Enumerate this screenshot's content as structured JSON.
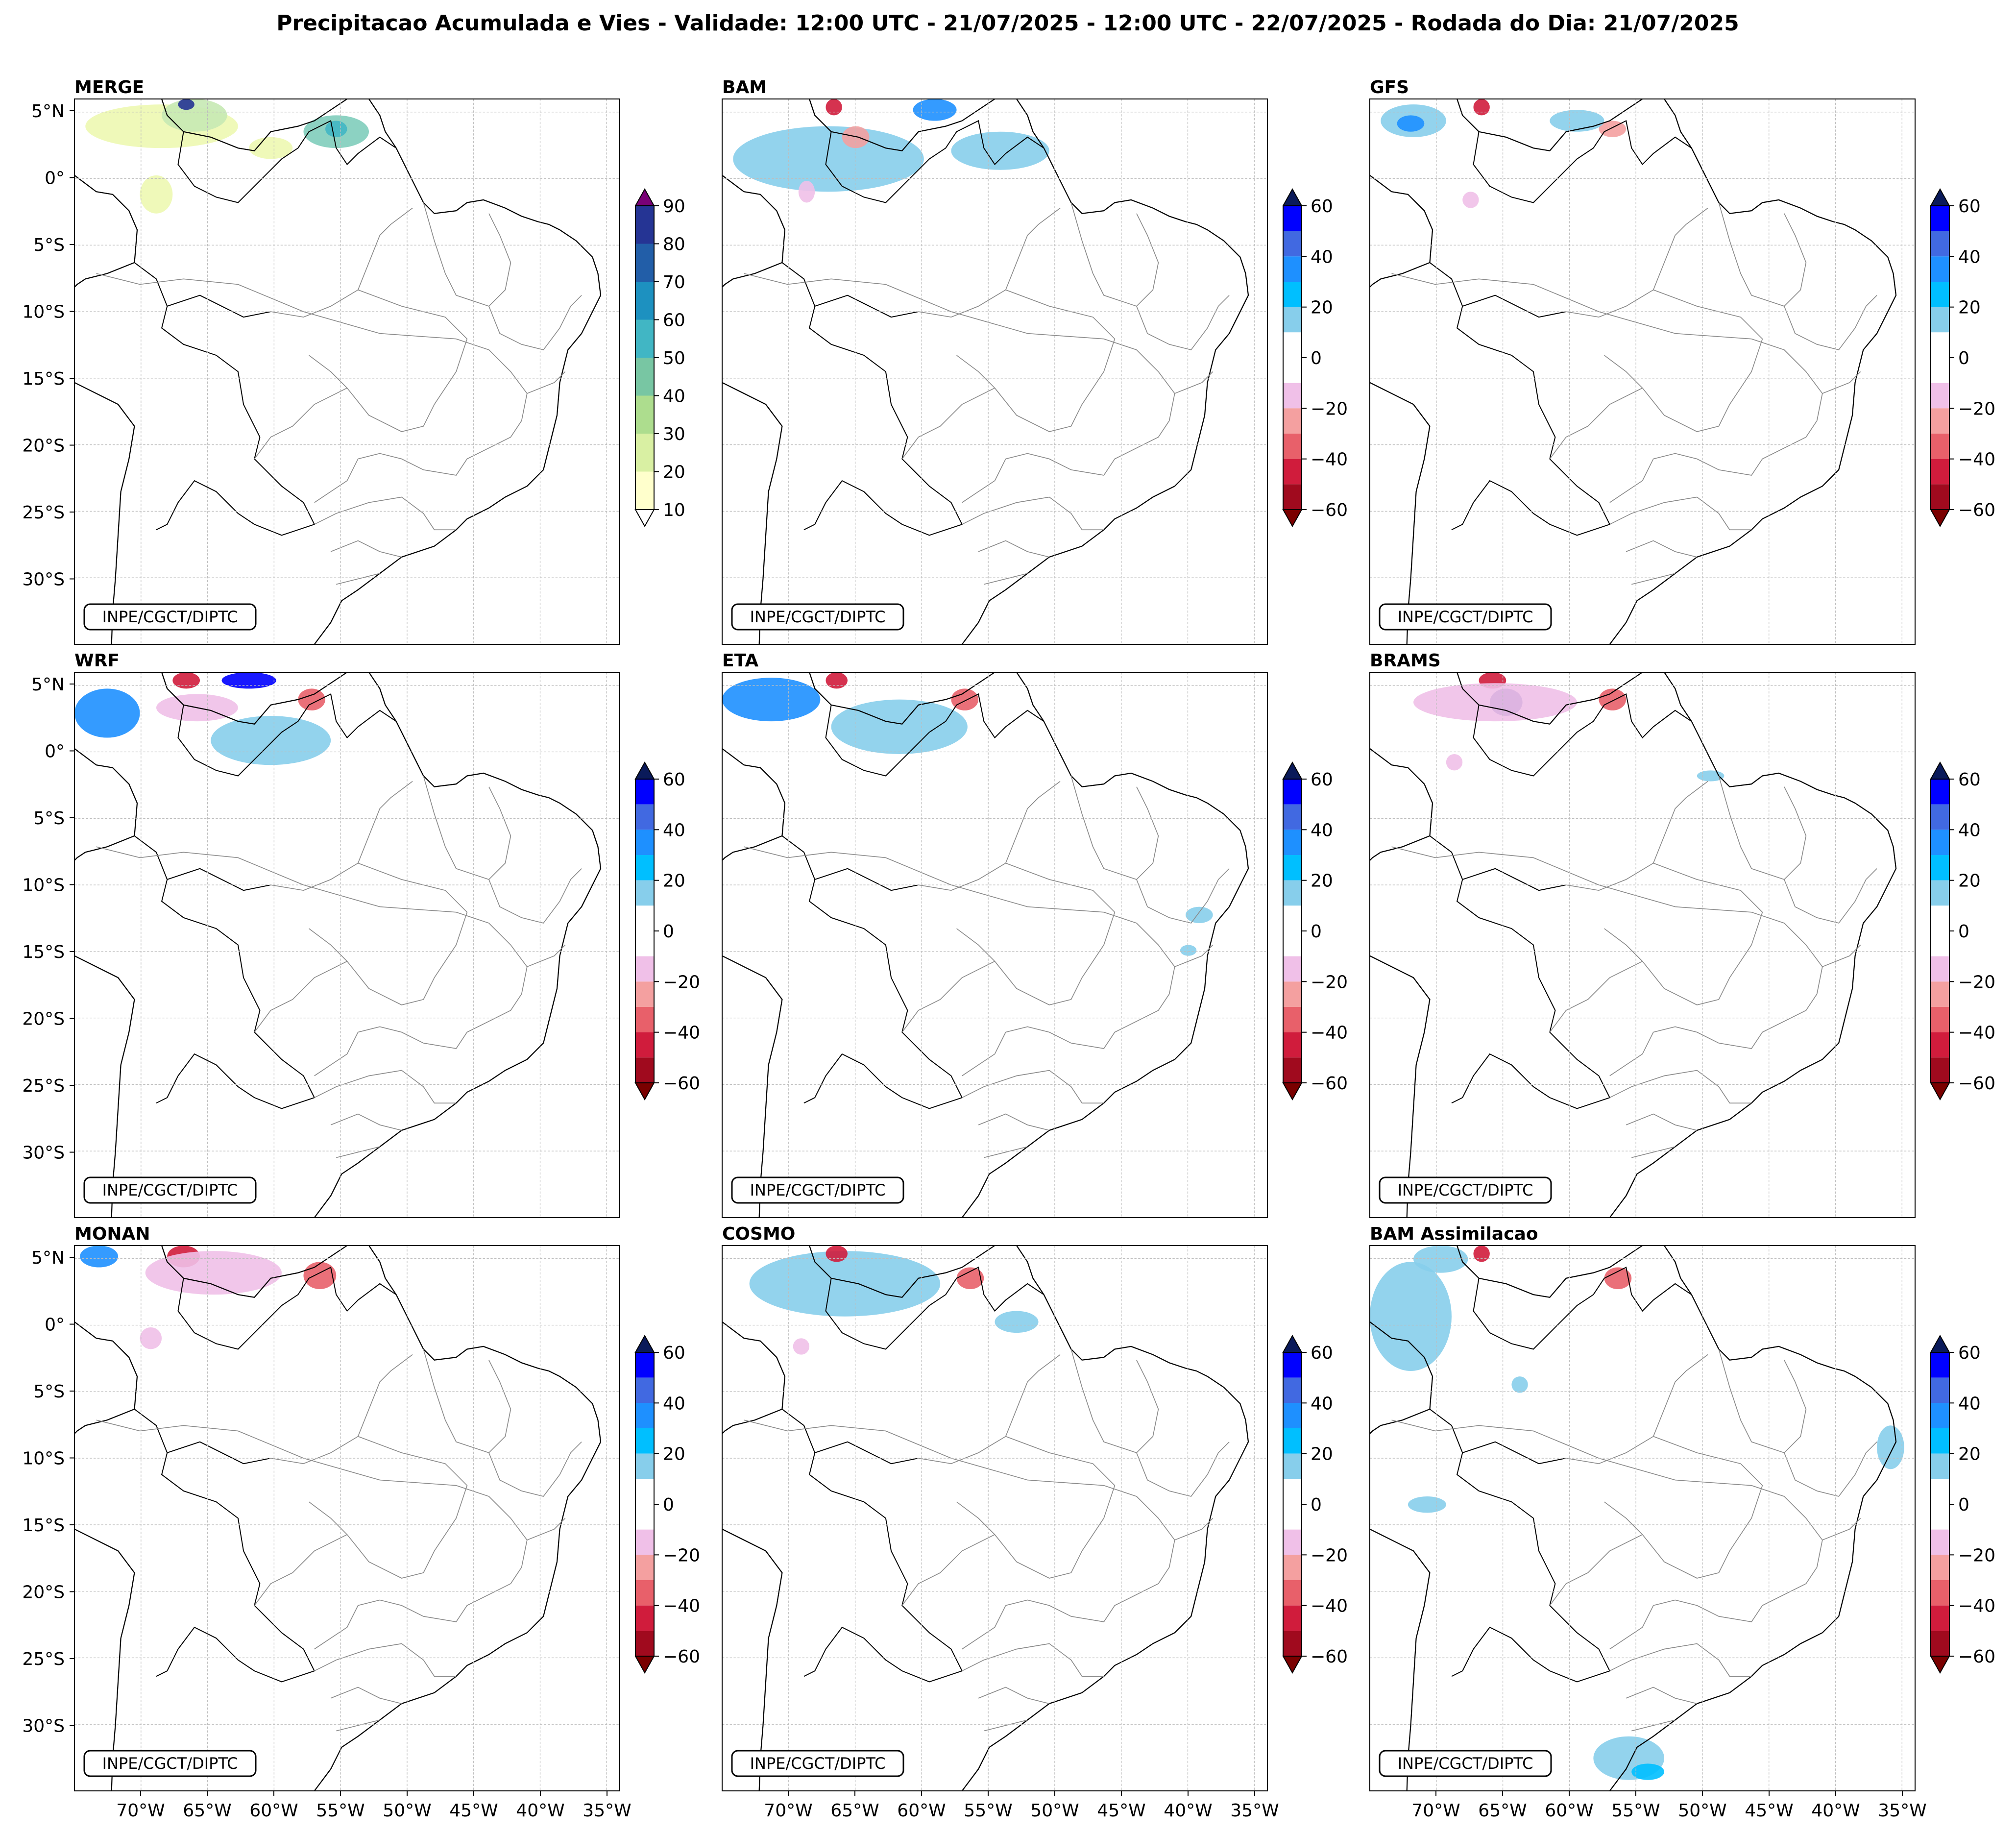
{
  "figure": {
    "title": "Precipitacao Acumulada e Vies - Validade: 12:00 UTC - 21/07/2025 - 12:00 UTC - 22/07/2025 - Rodada do Dia: 21/07/2025",
    "credit": "INPE/CGCT/DIPTC"
  },
  "axes": {
    "lat_ticks": [
      "5°N",
      "0°",
      "5°S",
      "10°S",
      "15°S",
      "20°S",
      "25°S",
      "30°S"
    ],
    "lat_values": [
      5,
      0,
      -5,
      -10,
      -15,
      -20,
      -25,
      -30
    ],
    "lon_ticks": [
      "70°W",
      "65°W",
      "60°W",
      "55°W",
      "50°W",
      "45°W",
      "40°W",
      "35°W"
    ],
    "lon_values": [
      -70,
      -65,
      -60,
      -55,
      -50,
      -45,
      -40,
      -35
    ],
    "lon_range": [
      -75,
      -34
    ],
    "lat_range": [
      -35,
      6
    ]
  },
  "colorbars": {
    "precip": {
      "ticks": [
        "10",
        "20",
        "30",
        "40",
        "50",
        "60",
        "70",
        "80",
        "90"
      ],
      "colors": [
        "#ffffcc",
        "#d9f0a3",
        "#addd8e",
        "#78c6a3",
        "#41b6c4",
        "#1d91c0",
        "#225ea8",
        "#253494",
        "#081d58"
      ],
      "over_color": "#7a0177",
      "under_color": "#ffffff"
    },
    "bias": {
      "ticks": [
        "60",
        "40",
        "20",
        "0",
        "−20",
        "−40",
        "−60"
      ],
      "colors_top_to_bottom": [
        "#0000ff",
        "#4169e1",
        "#1e90ff",
        "#00bfff",
        "#87ceeb",
        "#ffffff",
        "#ffffff",
        "#f0c0e8",
        "#f4a0a0",
        "#e8606a",
        "#d01c3c",
        "#a00a1e"
      ],
      "over_color": "#0a1a5a",
      "under_color": "#7a0000"
    }
  },
  "panels": [
    {
      "label": "MERGE",
      "colorbar": "precip"
    },
    {
      "label": "BAM",
      "colorbar": "bias"
    },
    {
      "label": "GFS",
      "colorbar": "bias"
    },
    {
      "label": "WRF",
      "colorbar": "bias"
    },
    {
      "label": "ETA",
      "colorbar": "bias"
    },
    {
      "label": "BRAMS",
      "colorbar": "bias"
    },
    {
      "label": "MONAN",
      "colorbar": "bias"
    },
    {
      "label": "COSMO",
      "colorbar": "bias"
    },
    {
      "label": "BAM Assimilacao",
      "colorbar": "bias"
    }
  ]
}
